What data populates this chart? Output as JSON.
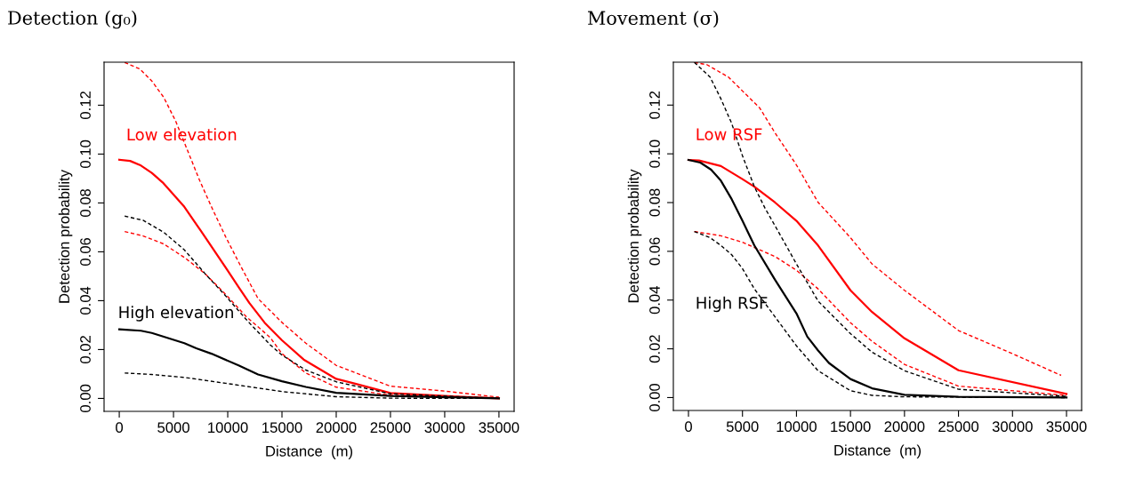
{
  "chart_data": [
    {
      "type": "line",
      "title": "Detection (g₀)",
      "xlabel": "Distance  (m)",
      "ylabel": "Detection probability",
      "xlim": [
        -1400,
        36400
      ],
      "ylim": [
        -0.0053,
        0.1376
      ],
      "xticks": [
        0,
        5000,
        10000,
        15000,
        20000,
        25000,
        30000,
        35000
      ],
      "yticks": [
        {
          "value": 0,
          "label": "0.00"
        },
        {
          "value": 0.02,
          "label": "0.02"
        },
        {
          "value": 0.04,
          "label": "0.04"
        },
        {
          "value": 0.06,
          "label": "0.06"
        },
        {
          "value": 0.08,
          "label": "0.08"
        },
        {
          "value": 0.1,
          "label": "0.10"
        },
        {
          "value": 0.12,
          "label": "0.12"
        }
      ],
      "grid": false,
      "series": [
        {
          "name": "Low elevation",
          "color": "#ff0000",
          "line_style": "solid",
          "x": [
            0,
            1000,
            2000,
            3000,
            4000,
            6000,
            7500,
            10000,
            11000,
            12000,
            13400,
            15000,
            17000,
            20000,
            21600,
            25000,
            30000,
            35000
          ],
          "values": [
            0.0977,
            0.0972,
            0.0953,
            0.0923,
            0.0884,
            0.0784,
            0.0687,
            0.0523,
            0.0456,
            0.039,
            0.031,
            0.0238,
            0.0159,
            0.008,
            0.0062,
            0.0022,
            0.001,
            0.0
          ]
        },
        {
          "color": "#ff0000",
          "line_style": "dashed",
          "x": [
            500,
            1900,
            3000,
            4100,
            5200,
            6300,
            7400,
            8500,
            9800,
            11200,
            12800,
            15000,
            17200,
            20000,
            25000,
            30000,
            35000
          ],
          "values": [
            0.1375,
            0.1348,
            0.1299,
            0.1232,
            0.1135,
            0.1014,
            0.0893,
            0.0784,
            0.0662,
            0.0541,
            0.0408,
            0.0311,
            0.0226,
            0.0135,
            0.005,
            0.003,
            0.0005
          ]
        },
        {
          "color": "#ff0000",
          "line_style": "dashed",
          "x": [
            500,
            2200,
            4100,
            6000,
            7900,
            9800,
            11700,
            13900,
            15000,
            17200,
            20000,
            25000,
            35000
          ],
          "values": [
            0.0683,
            0.0665,
            0.0632,
            0.0577,
            0.0511,
            0.0426,
            0.0335,
            0.025,
            0.0183,
            0.0104,
            0.0046,
            0.0013,
            0.0
          ]
        },
        {
          "color": "#000000",
          "line_style": "dashed",
          "x": [
            500,
            2200,
            4100,
            6000,
            7900,
            9800,
            11700,
            13900,
            15000,
            17200,
            20000,
            25000,
            35000
          ],
          "values": [
            0.0746,
            0.0729,
            0.068,
            0.0608,
            0.0511,
            0.042,
            0.0323,
            0.022,
            0.0177,
            0.0116,
            0.0068,
            0.0019,
            0.0
          ]
        },
        {
          "name": "High elevation",
          "color": "#000000",
          "line_style": "solid",
          "x": [
            0,
            2000,
            3000,
            6000,
            7100,
            8500,
            11000,
            12800,
            15000,
            17200,
            20000,
            25000,
            35000
          ],
          "values": [
            0.0283,
            0.0277,
            0.0268,
            0.0226,
            0.0205,
            0.0183,
            0.0135,
            0.0098,
            0.007,
            0.0047,
            0.0023,
            0.001,
            0.0
          ]
        },
        {
          "color": "#000000",
          "line_style": "dashed",
          "x": [
            500,
            3000,
            6000,
            9800,
            15000,
            20000,
            25000,
            35000
          ],
          "values": [
            0.0104,
            0.0098,
            0.0086,
            0.0062,
            0.0028,
            0.0007,
            0.0001,
            0.0
          ]
        }
      ]
    },
    {
      "type": "line",
      "title": "Movement (σ)",
      "xlabel": "Distance  (m)",
      "ylabel": "Detection probability",
      "xlim": [
        -1400,
        36400
      ],
      "ylim": [
        -0.0053,
        0.1376
      ],
      "xticks": [
        0,
        5000,
        10000,
        15000,
        20000,
        25000,
        30000,
        35000
      ],
      "yticks": [
        {
          "value": 0,
          "label": "0.00"
        },
        {
          "value": 0.02,
          "label": "0.02"
        },
        {
          "value": 0.04,
          "label": "0.04"
        },
        {
          "value": 0.06,
          "label": "0.06"
        },
        {
          "value": 0.08,
          "label": "0.08"
        },
        {
          "value": 0.1,
          "label": "0.10"
        },
        {
          "value": 0.12,
          "label": "0.12"
        }
      ],
      "grid": false,
      "series": [
        {
          "name": "Low RSF",
          "color": "#ff0000",
          "line_style": "solid",
          "x": [
            0,
            975,
            3000,
            5000,
            6100,
            8000,
            10000,
            12000,
            15000,
            17000,
            20000,
            25000,
            35000
          ],
          "values": [
            0.0975,
            0.0973,
            0.095,
            0.0896,
            0.0865,
            0.0801,
            0.0725,
            0.0624,
            0.044,
            0.0351,
            0.0243,
            0.0112,
            0.0015
          ]
        },
        {
          "color": "#ff0000",
          "line_style": "dashed",
          "x": [
            545,
            1700,
            3700,
            5000,
            6600,
            8000,
            10000,
            12000,
            15000,
            17000,
            20000,
            25000,
            30000,
            34500
          ],
          "values": [
            0.1375,
            0.1366,
            0.1315,
            0.1258,
            0.1188,
            0.1087,
            0.0954,
            0.0801,
            0.0656,
            0.0548,
            0.044,
            0.0275,
            0.018,
            0.0091
          ]
        },
        {
          "color": "#ff0000",
          "line_style": "dashed",
          "x": [
            545,
            3000,
            5000,
            8000,
            10000,
            12000,
            15000,
            17000,
            20000,
            25000,
            35000
          ],
          "values": [
            0.0681,
            0.0664,
            0.0637,
            0.0579,
            0.0522,
            0.0446,
            0.0307,
            0.0231,
            0.0136,
            0.0047,
            0.0009
          ]
        },
        {
          "name": "High RSF",
          "color": "#000000",
          "line_style": "solid",
          "x": [
            0,
            1100,
            2100,
            3000,
            4000,
            5000,
            6100,
            8000,
            10000,
            11000,
            12000,
            13000,
            15000,
            17000,
            20000,
            25000,
            35000
          ],
          "values": [
            0.0975,
            0.0964,
            0.0935,
            0.089,
            0.0814,
            0.0725,
            0.0624,
            0.0484,
            0.0345,
            0.025,
            0.0193,
            0.0142,
            0.0076,
            0.0038,
            0.0011,
            0.0003,
            0.0
          ]
        },
        {
          "color": "#000000",
          "line_style": "dashed",
          "x": [
            545,
            2000,
            3000,
            4000,
            5000,
            6100,
            7100,
            8000,
            10000,
            12000,
            15000,
            17000,
            20000,
            25000,
            35000
          ],
          "values": [
            0.1375,
            0.1315,
            0.1226,
            0.1125,
            0.0992,
            0.0865,
            0.0776,
            0.0706,
            0.0548,
            0.0396,
            0.0262,
            0.0186,
            0.011,
            0.0034,
            0.0005
          ]
        },
        {
          "color": "#000000",
          "line_style": "dashed",
          "x": [
            545,
            2000,
            3000,
            4000,
            5000,
            6100,
            8000,
            10000,
            12000,
            15000,
            17000,
            20000,
            35000
          ],
          "values": [
            0.0681,
            0.0656,
            0.0624,
            0.0586,
            0.0529,
            0.0446,
            0.0332,
            0.0212,
            0.011,
            0.0028,
            0.0009,
            0.0003,
            0.0
          ]
        }
      ]
    }
  ]
}
